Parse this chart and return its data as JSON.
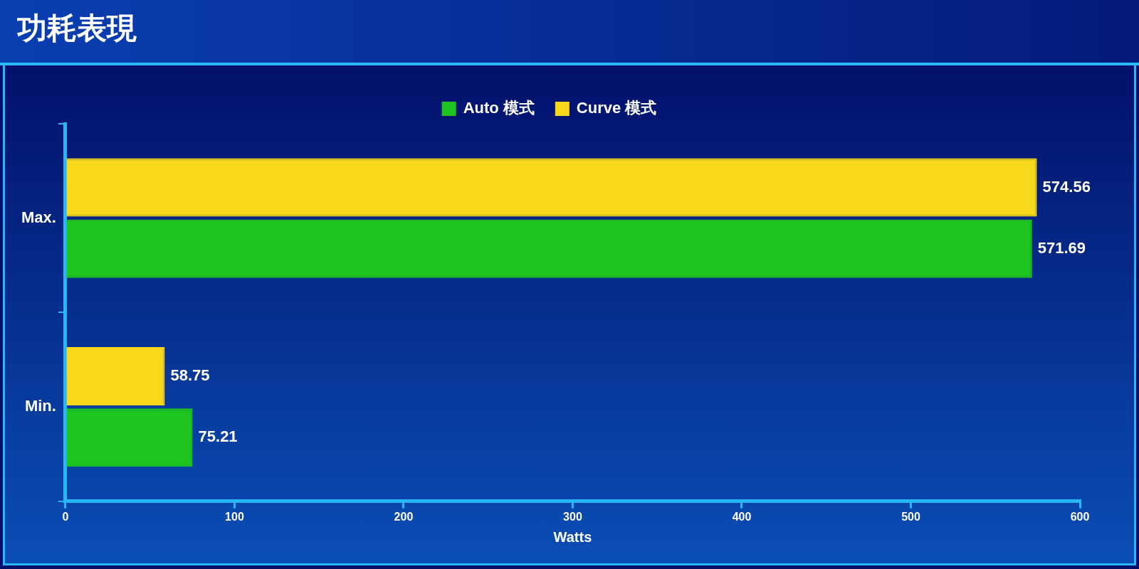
{
  "chart_data": {
    "type": "bar",
    "orientation": "horizontal",
    "title": "功耗表現",
    "xlabel": "Watts",
    "categories": [
      "Max.",
      "Min."
    ],
    "series": [
      {
        "name": "Auto 模式",
        "color": "#1ec51e",
        "values": [
          571.69,
          75.21
        ]
      },
      {
        "name": "Curve 模式",
        "color": "#f7d81a",
        "values": [
          574.56,
          58.75
        ]
      }
    ],
    "xlim": [
      0,
      600
    ],
    "xticks": [
      0,
      100,
      200,
      300,
      400,
      500,
      600
    ],
    "legend": "top",
    "data_labels": true
  }
}
